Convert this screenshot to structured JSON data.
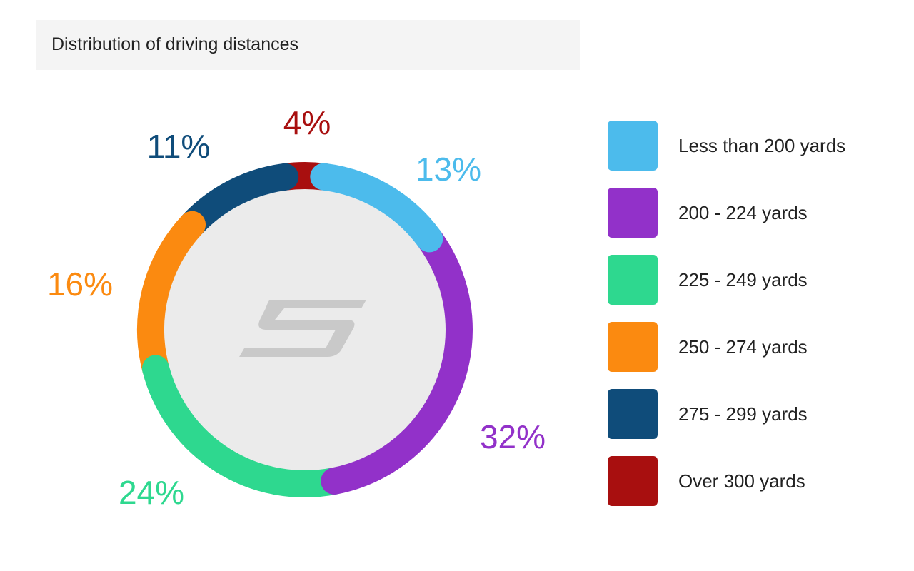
{
  "chart_data": {
    "type": "pie",
    "title": "Distribution of driving distances",
    "categories": [
      "Less than 200 yards",
      "200 - 224 yards",
      "225 - 249 yards",
      "250 - 274 yards",
      "275 - 299 yards",
      "Over 300 yards"
    ],
    "values": [
      13,
      32,
      24,
      16,
      11,
      4
    ],
    "labels": [
      "13%",
      "32%",
      "24%",
      "16%",
      "11%",
      "4%"
    ],
    "colors": [
      "#4cbbec",
      "#9231c9",
      "#2ed88f",
      "#fb8a10",
      "#0f4c7a",
      "#a80f0f"
    ],
    "legend_position": "right",
    "donut": true
  }
}
